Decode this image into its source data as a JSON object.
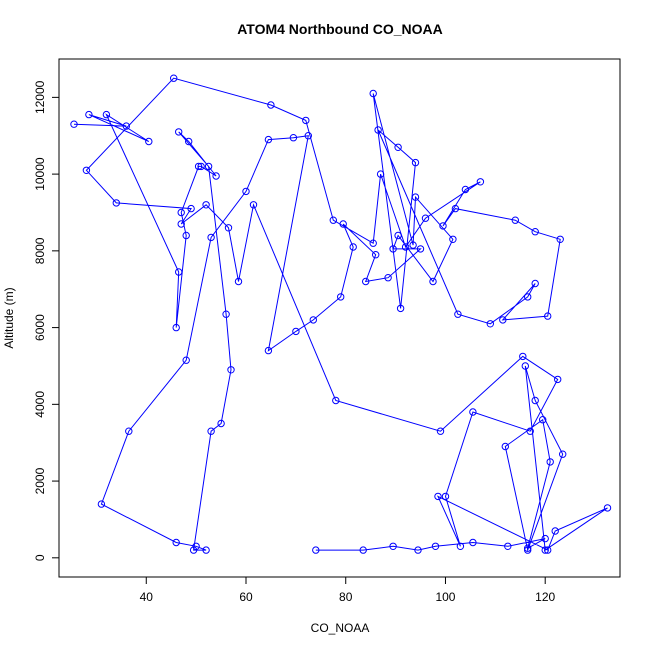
{
  "chart_data": {
    "type": "line",
    "title": "ATOM4 Northbound CO_NOAA",
    "xlabel": "CO_NOAA",
    "ylabel": "Altitude (m)",
    "xlim": [
      22.5,
      135.0
    ],
    "ylim": [
      -500,
      13000
    ],
    "x_ticks": [
      40,
      60,
      80,
      100,
      120
    ],
    "y_ticks": [
      0,
      2000,
      4000,
      6000,
      8000,
      10000,
      12000
    ],
    "grid": false,
    "legend": "none",
    "colors": {
      "series": "#0000ff",
      "axis": "#000000",
      "background": "#ffffff"
    },
    "series": [
      {
        "x": [
          25.5,
          36.0,
          28.5,
          40.5,
          32.0,
          46.5,
          46.0,
          48.0,
          47.0,
          50.5,
          51.0,
          54.0,
          48.5,
          46.5,
          52.5,
          56.0,
          57.0,
          55.0,
          53.0,
          49.5,
          52.0,
          50.0,
          46.0,
          31.0,
          36.5,
          48.0,
          53.0,
          60.0,
          64.5,
          69.5,
          72.5,
          64.5,
          70.0,
          73.5,
          79.0,
          81.5,
          79.5,
          86.0,
          84.0,
          88.5,
          95.0,
          89.5,
          90.5,
          97.5,
          101.5,
          94.0,
          93.5,
          85.5,
          91.0,
          94.0,
          90.5,
          86.5,
          102.5,
          109.0,
          116.5,
          118.0,
          111.5,
          120.5,
          123.0,
          118.0,
          114.0,
          102.0,
          99.5,
          104.0,
          107.0,
          96.0,
          92.0,
          87.0,
          85.5,
          77.5,
          72.0,
          65.0,
          45.5,
          28.0,
          34.0,
          49.0,
          47.0,
          52.0,
          56.5,
          58.5,
          61.5,
          78.0,
          99.0,
          115.5,
          122.5,
          117.0,
          105.5,
          100.0,
          103.0,
          98.5,
          120.5,
          122.0,
          132.5,
          120.0,
          116.0,
          118.0,
          123.5,
          116.5,
          112.0,
          119.5,
          121.0,
          116.5,
          120.0,
          112.5,
          105.5,
          98.0,
          94.5,
          89.5,
          83.5,
          74.0
        ],
        "y": [
          11300,
          11250,
          11550,
          10850,
          11550,
          7450,
          6000,
          8400,
          9000,
          10200,
          10200,
          9950,
          10850,
          11100,
          10200,
          6350,
          4900,
          3500,
          3300,
          200,
          200,
          300,
          400,
          1400,
          3300,
          5150,
          8350,
          9550,
          10900,
          10950,
          11000,
          5400,
          5900,
          6200,
          6800,
          8100,
          8700,
          7900,
          7200,
          7300,
          8050,
          8050,
          8400,
          7200,
          8300,
          9400,
          8150,
          12100,
          6500,
          10300,
          10700,
          11150,
          6350,
          6100,
          6800,
          7150,
          6200,
          6300,
          8300,
          8500,
          8800,
          9100,
          8650,
          9600,
          9800,
          8850,
          8100,
          10000,
          8200,
          8800,
          11400,
          11800,
          12500,
          10100,
          9250,
          9100,
          8700,
          9200,
          8600,
          7200,
          9200,
          4100,
          3300,
          5250,
          4650,
          3300,
          3800,
          1600,
          300,
          1600,
          200,
          700,
          1300,
          200,
          5000,
          4100,
          2700,
          200,
          2900,
          3600,
          2500,
          250,
          500,
          300,
          400,
          300,
          200,
          300,
          200,
          200
        ]
      }
    ]
  }
}
